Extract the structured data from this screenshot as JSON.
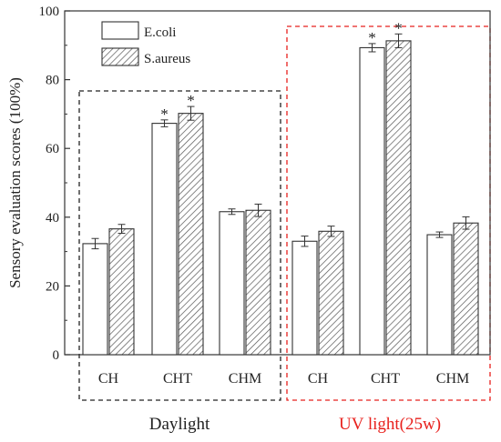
{
  "chart_data": {
    "type": "bar",
    "ylabel": "Sensory evaluation scores (100%)",
    "ylim": [
      0,
      100
    ],
    "yticks": [
      0,
      20,
      40,
      60,
      80,
      100
    ],
    "categories": [
      "CH",
      "CHT",
      "CHM",
      "CH",
      "CHT",
      "CHM"
    ],
    "series": [
      {
        "name": "E.coli",
        "fill": "open",
        "values": [
          32.3,
          67.3,
          41.6,
          33.0,
          89.3,
          34.9
        ],
        "errors": [
          1.5,
          1.0,
          0.8,
          1.5,
          1.2,
          0.8
        ],
        "significant": [
          false,
          true,
          false,
          false,
          true,
          false
        ]
      },
      {
        "name": "S.aureus",
        "fill": "hatched",
        "values": [
          36.6,
          70.2,
          42.0,
          35.9,
          91.3,
          38.3
        ],
        "errors": [
          1.3,
          2.0,
          1.8,
          1.5,
          2.0,
          1.8
        ],
        "significant": [
          false,
          true,
          false,
          false,
          true,
          false
        ]
      }
    ],
    "significance_marker": "*",
    "groups": [
      {
        "label": "Daylight",
        "color": "#222222",
        "categories": [
          0,
          1,
          2
        ]
      },
      {
        "label": "UV light(25w)",
        "color": "#e8211d",
        "categories": [
          3,
          4,
          5
        ]
      }
    ],
    "legend_position": "top-left"
  }
}
